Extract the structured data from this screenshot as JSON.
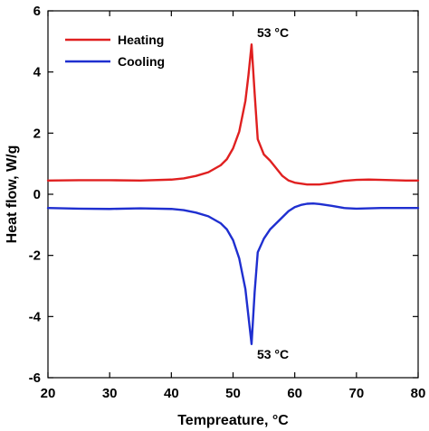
{
  "chart_data": {
    "type": "line",
    "xlabel": "Tempreature, °C",
    "ylabel": "Heat flow, W/g",
    "xlim": [
      20,
      80
    ],
    "ylim": [
      -6,
      6
    ],
    "xticks": [
      20,
      30,
      40,
      50,
      60,
      70,
      80
    ],
    "xtick_labels": [
      "20",
      "30",
      "40",
      "50",
      "60",
      "70",
      "80"
    ],
    "yticks": [
      -6,
      -4,
      -2,
      0,
      2,
      4,
      6
    ],
    "ytick_labels": [
      "-6",
      "-4",
      "-2",
      "0",
      "2",
      "4",
      "6"
    ],
    "grid": false,
    "legend_position": "top-left",
    "series": [
      {
        "name": "Heating",
        "color": "#e02020",
        "x": [
          20,
          25,
          30,
          35,
          40,
          42,
          44,
          46,
          48,
          49,
          50,
          51,
          52,
          52.5,
          53,
          53.5,
          54,
          55,
          56,
          57,
          58,
          59,
          60,
          62,
          64,
          66,
          68,
          70,
          72,
          74,
          76,
          78,
          80
        ],
        "y": [
          0.45,
          0.46,
          0.46,
          0.45,
          0.48,
          0.52,
          0.6,
          0.72,
          0.95,
          1.15,
          1.5,
          2.05,
          3.05,
          3.9,
          4.9,
          3.3,
          1.8,
          1.3,
          1.1,
          0.85,
          0.6,
          0.45,
          0.38,
          0.32,
          0.32,
          0.37,
          0.44,
          0.47,
          0.48,
          0.47,
          0.46,
          0.45,
          0.45
        ]
      },
      {
        "name": "Cooling",
        "color": "#1f2fd0",
        "x": [
          20,
          25,
          30,
          35,
          40,
          42,
          44,
          46,
          48,
          49,
          50,
          51,
          52,
          52.5,
          53,
          53.5,
          54,
          55,
          56,
          57,
          58,
          59,
          60,
          61,
          62,
          63,
          64,
          66,
          68,
          70,
          72,
          74,
          76,
          78,
          80
        ],
        "y": [
          -0.45,
          -0.47,
          -0.48,
          -0.46,
          -0.48,
          -0.52,
          -0.6,
          -0.72,
          -0.95,
          -1.15,
          -1.5,
          -2.1,
          -3.1,
          -4.0,
          -4.9,
          -3.2,
          -1.9,
          -1.45,
          -1.15,
          -0.95,
          -0.75,
          -0.55,
          -0.42,
          -0.35,
          -0.31,
          -0.3,
          -0.32,
          -0.38,
          -0.45,
          -0.47,
          -0.46,
          -0.45,
          -0.45,
          -0.45,
          -0.45
        ]
      }
    ],
    "annotations": [
      {
        "text": "53 °C",
        "x": 53,
        "y": 4.9,
        "position": "above-right"
      },
      {
        "text": "53 °C",
        "x": 53,
        "y": -4.9,
        "position": "below-right"
      }
    ]
  }
}
